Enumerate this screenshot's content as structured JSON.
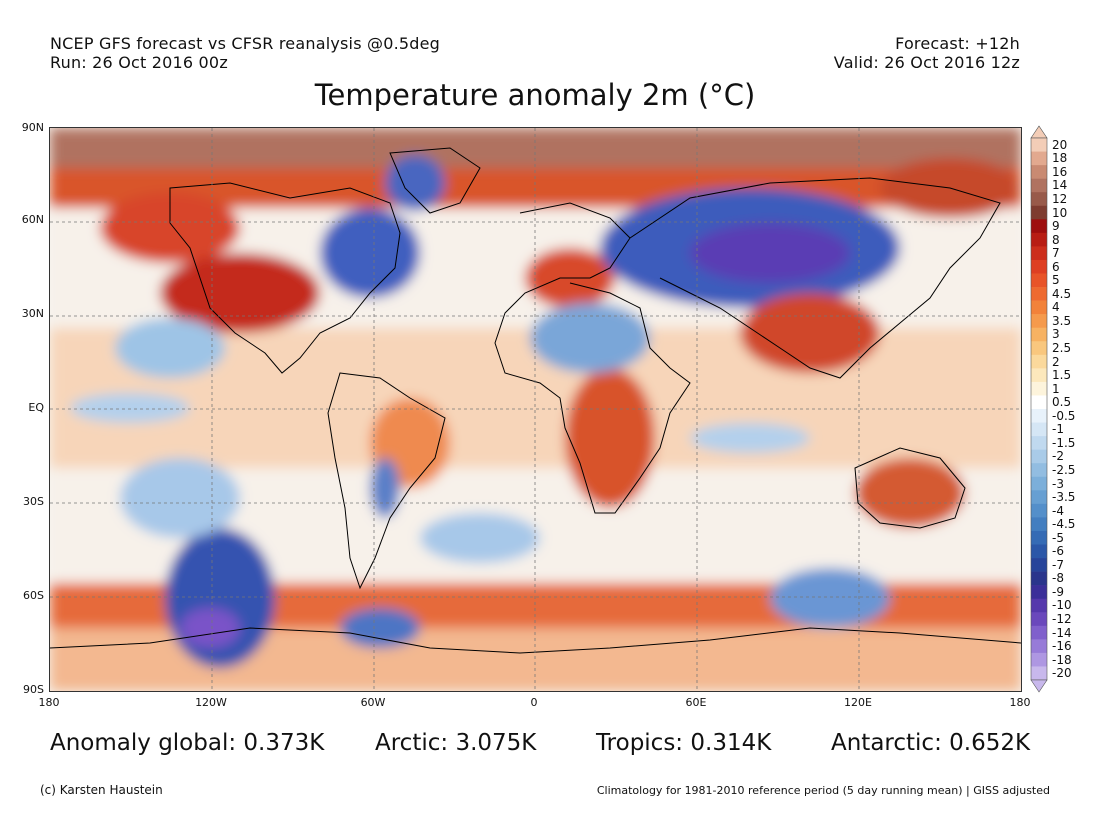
{
  "header": {
    "left_line1": "NCEP GFS forecast vs CFSR reanalysis @0.5deg",
    "left_line2": "Run: 26 Oct 2016 00z",
    "right_line1": "Forecast: +12h",
    "right_line2": "Valid: 26 Oct 2016 12z"
  },
  "title": "Temperature anomaly 2m (°C)",
  "map": {
    "lat_labels": [
      "90N",
      "60N",
      "30N",
      "EQ",
      "30S",
      "60S",
      "90S"
    ],
    "lon_labels": [
      "180",
      "120W",
      "60W",
      "0",
      "60E",
      "120E",
      "180"
    ],
    "gridlines": "dashed",
    "colors": {
      "land_outline": "#000000",
      "arctic_warm": "#b07260",
      "warm_strong": "#c42a1a",
      "warm_mid": "#e8602e",
      "warm_light": "#f6b27a",
      "neutral": "#f6f3ee",
      "cool_light": "#bcd6ee",
      "cool_mid": "#6ea6da",
      "cool_strong": "#2f4fb0",
      "cold_extreme": "#7a52c8"
    }
  },
  "colorbar": {
    "labels": [
      "20",
      "18",
      "16",
      "14",
      "12",
      "10",
      "9",
      "8",
      "7",
      "6",
      "5",
      "4.5",
      "4",
      "3.5",
      "3",
      "2.5",
      "2",
      "1.5",
      "1",
      "0.5",
      "-0.5",
      "-1",
      "-1.5",
      "-2",
      "-2.5",
      "-3",
      "-3.5",
      "-4",
      "-4.5",
      "-5",
      "-6",
      "-7",
      "-8",
      "-9",
      "-10",
      "-12",
      "-14",
      "-16",
      "-18",
      "-20"
    ],
    "colors": [
      "#f3cdb7",
      "#e2a98f",
      "#c98a72",
      "#b07260",
      "#985a4a",
      "#7e3c30",
      "#9e0e0e",
      "#b81d14",
      "#cc2e1c",
      "#de3f22",
      "#e85428",
      "#ee6a30",
      "#f2823a",
      "#f59a4c",
      "#f7b262",
      "#f9c77e",
      "#fbd99c",
      "#fce8bc",
      "#fdf4dc",
      "#ffffff",
      "#e8f2fb",
      "#d5e6f5",
      "#c0d9ef",
      "#a9cbe8",
      "#92bde1",
      "#7cafda",
      "#679fd2",
      "#548fca",
      "#437ec0",
      "#356bb5",
      "#2b57a8",
      "#27449a",
      "#2a358c",
      "#3b2f99",
      "#5538ac",
      "#6a48bc",
      "#8060cc",
      "#977bd8",
      "#ae97e2",
      "#c8b8ec"
    ]
  },
  "stats": {
    "global": "Anomaly global: 0.373K",
    "arctic": "Arctic: 3.075K",
    "tropics": "Tropics: 0.314K",
    "antarctic": "Antarctic: 0.652K"
  },
  "footer": {
    "credit": "(c) Karsten Haustein",
    "note": "Climatology for 1981-2010 reference period (5 day running mean) | GISS adjusted"
  }
}
